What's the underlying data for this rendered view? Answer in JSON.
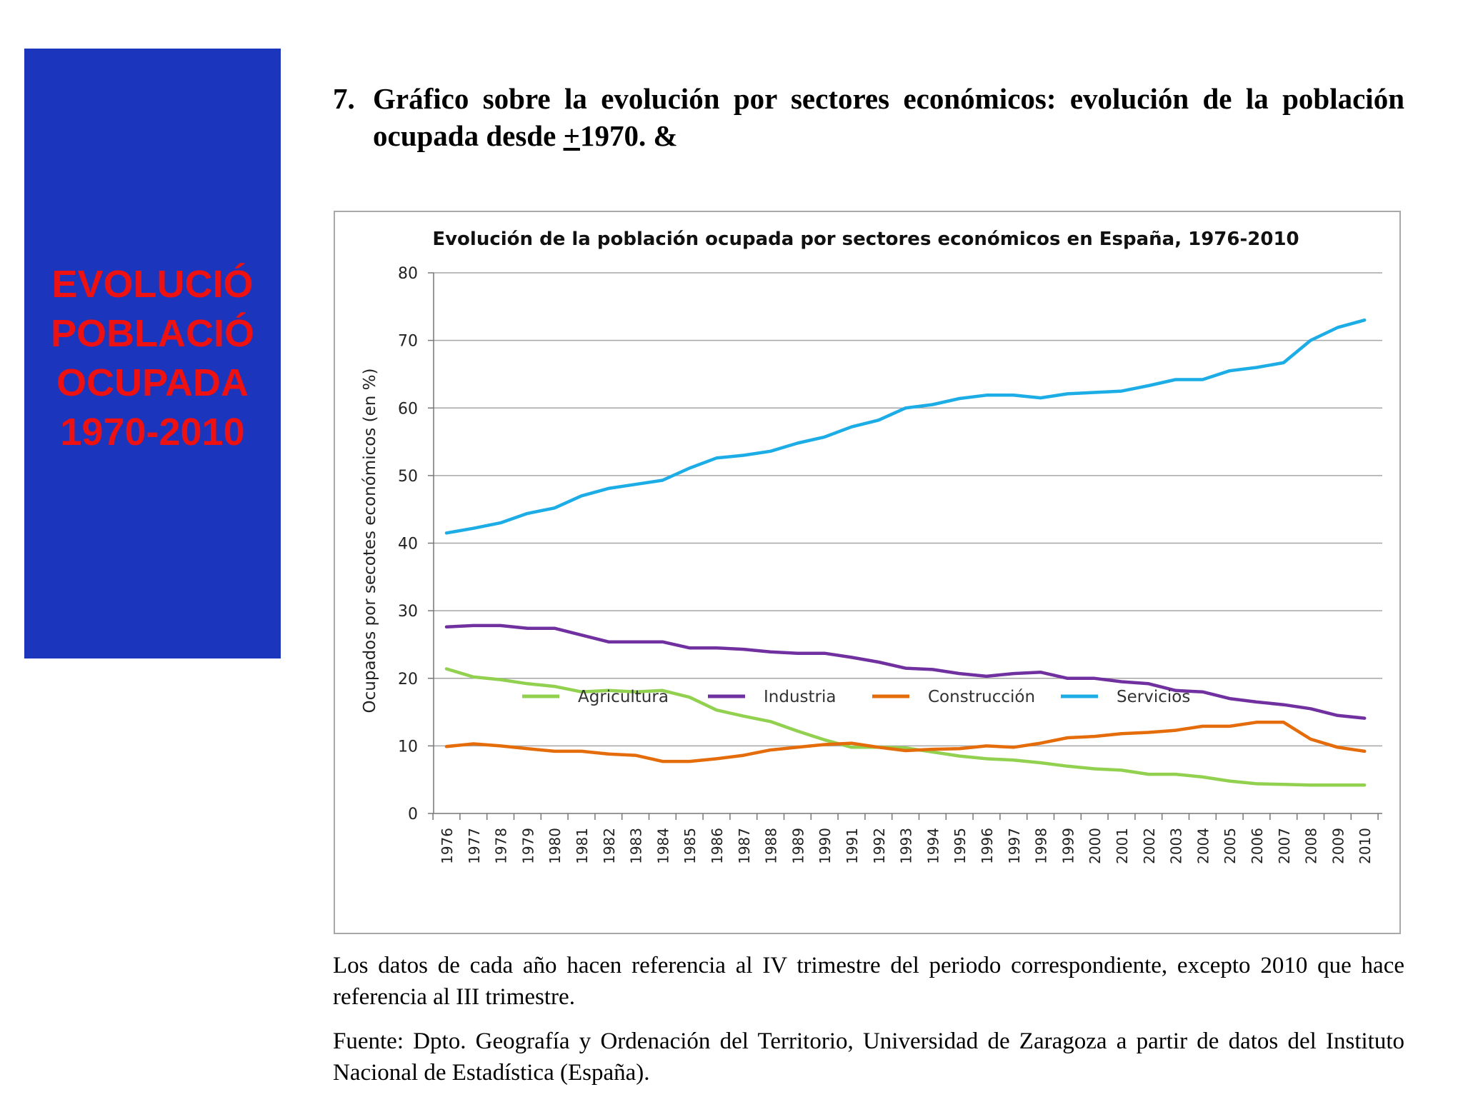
{
  "side_panel": {
    "lines": [
      "EVOLUCIÓ",
      "POBLACIÓ",
      "OCUPADA",
      "1970-2010"
    ],
    "bg_color": "#1b35bd",
    "text_color": "#ee1111"
  },
  "heading": {
    "number": "7.",
    "text_before": "Gráfico sobre la evolución por sectores económicos: evolución de la población ocupada desde ",
    "underlined": "+",
    "text_after": "1970. &"
  },
  "chart_data": {
    "type": "line",
    "title": "Evolución de la población ocupada por sectores económicos en España, 1976-2010",
    "ylabel": "Ocupados por secotes económicos (en %)",
    "xlabel": "",
    "ylim": [
      0,
      80
    ],
    "yticks": [
      0,
      10,
      20,
      30,
      40,
      50,
      60,
      70,
      80
    ],
    "grid": true,
    "legend_position": "bottom",
    "x": [
      "1976",
      "1977",
      "1978",
      "1979",
      "1980",
      "1981",
      "1982",
      "1983",
      "1984",
      "1985",
      "1986",
      "1987",
      "1988",
      "1989",
      "1990",
      "1991",
      "1992",
      "1993",
      "1994",
      "1995",
      "1996",
      "1997",
      "1998",
      "1999",
      "2000",
      "2001",
      "2002",
      "2003",
      "2004",
      "2005",
      "2006",
      "2007",
      "2008",
      "2009",
      "2010"
    ],
    "series": [
      {
        "name": "Agricultura",
        "color": "#92d050",
        "values": [
          21.4,
          20.2,
          19.8,
          19.2,
          18.8,
          18.0,
          18.2,
          18.0,
          18.2,
          17.2,
          15.3,
          14.4,
          13.6,
          12.2,
          10.9,
          9.8,
          9.8,
          9.7,
          9.1,
          8.5,
          8.1,
          7.9,
          7.5,
          7.0,
          6.6,
          6.4,
          5.8,
          5.8,
          5.4,
          4.8,
          4.4,
          4.3,
          4.2,
          4.2,
          4.2
        ]
      },
      {
        "name": "Industria",
        "color": "#7030a0",
        "values": [
          27.6,
          27.8,
          27.8,
          27.4,
          27.4,
          26.4,
          25.4,
          25.4,
          25.4,
          24.5,
          24.5,
          24.3,
          23.9,
          23.7,
          23.7,
          23.1,
          22.4,
          21.5,
          21.3,
          20.7,
          20.3,
          20.7,
          20.9,
          20.0,
          20.0,
          19.5,
          19.2,
          18.2,
          18.0,
          17.0,
          16.5,
          16.1,
          15.5,
          14.5,
          14.1
        ]
      },
      {
        "name": "Construcción",
        "color": "#e46c0a",
        "values": [
          9.9,
          10.3,
          10.0,
          9.6,
          9.2,
          9.2,
          8.8,
          8.6,
          7.7,
          7.7,
          8.1,
          8.6,
          9.4,
          9.8,
          10.2,
          10.4,
          9.8,
          9.3,
          9.5,
          9.6,
          10.0,
          9.8,
          10.4,
          11.2,
          11.4,
          11.8,
          12.0,
          12.3,
          12.9,
          12.9,
          13.5,
          13.5,
          11.0,
          9.8,
          9.2
        ]
      },
      {
        "name": "Servicios",
        "color": "#1cace6",
        "values": [
          41.5,
          42.2,
          43.0,
          44.4,
          45.2,
          47.0,
          48.1,
          48.7,
          49.3,
          51.1,
          52.6,
          53.0,
          53.6,
          54.8,
          55.7,
          57.2,
          58.2,
          60.0,
          60.5,
          61.4,
          61.9,
          61.9,
          61.5,
          62.1,
          62.3,
          62.5,
          63.3,
          64.2,
          64.2,
          65.5,
          66.0,
          66.7,
          70.0,
          71.9,
          73.0
        ]
      }
    ]
  },
  "note": "Los datos de cada año hacen referencia al IV trimestre del periodo correspondiente, excepto 2010 que hace referencia al III trimestre.",
  "source": "Fuente: Dpto. Geografía y Ordenación del Territorio, Universidad de Zaragoza a partir de datos del Instituto Nacional de Estadística (España)."
}
